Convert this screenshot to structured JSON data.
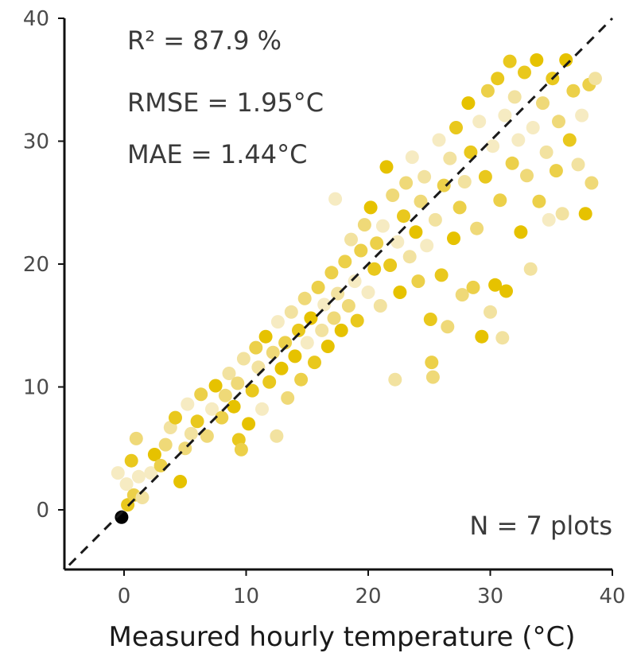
{
  "chart_data": {
    "type": "scatter",
    "title": "",
    "xlabel": "Measured hourly temperature (°C)",
    "ylabel": "",
    "xlim": [
      -5,
      40
    ],
    "ylim": [
      -5,
      40
    ],
    "x_ticks": [
      0,
      10,
      20,
      30,
      40
    ],
    "y_ticks": [
      0,
      10,
      20,
      30,
      40
    ],
    "grid": false,
    "reference_line": {
      "style": "dashed",
      "slope": 1,
      "intercept": 0,
      "color": "#1a1a1a"
    },
    "annotations": {
      "r2": "R² = 87.9 %",
      "rmse": "RMSE = 1.95°C",
      "mae": "MAE = 1.44°C",
      "n": "N = 7 plots"
    },
    "point_colors": [
      "#e6c200",
      "#e9c81d",
      "#ecd049",
      "#efd978",
      "#f2e2a0",
      "#f6ebc2"
    ],
    "points": [
      [
        -0.2,
        -0.6
      ],
      [
        0.3,
        0.4
      ],
      [
        0.8,
        1.2
      ],
      [
        1.5,
        1.0
      ],
      [
        1.2,
        2.7
      ],
      [
        0.2,
        2.1
      ],
      [
        -0.5,
        3.0
      ],
      [
        0.6,
        4.0
      ],
      [
        1.0,
        5.8
      ],
      [
        2.2,
        3.0
      ],
      [
        2.5,
        4.5
      ],
      [
        3.0,
        3.6
      ],
      [
        3.4,
        5.3
      ],
      [
        3.8,
        6.7
      ],
      [
        4.6,
        2.3
      ],
      [
        4.2,
        7.5
      ],
      [
        5.0,
        5.0
      ],
      [
        5.5,
        6.2
      ],
      [
        5.2,
        8.6
      ],
      [
        6.0,
        7.2
      ],
      [
        6.3,
        9.4
      ],
      [
        6.8,
        6.0
      ],
      [
        7.2,
        8.2
      ],
      [
        7.5,
        10.1
      ],
      [
        8.0,
        7.5
      ],
      [
        8.3,
        9.3
      ],
      [
        8.6,
        11.1
      ],
      [
        9.0,
        8.4
      ],
      [
        9.4,
        5.7
      ],
      [
        9.6,
        4.9
      ],
      [
        9.3,
        10.3
      ],
      [
        9.8,
        12.3
      ],
      [
        10.2,
        7.0
      ],
      [
        10.5,
        9.7
      ],
      [
        10.8,
        13.2
      ],
      [
        11.0,
        11.6
      ],
      [
        11.3,
        8.2
      ],
      [
        11.6,
        14.1
      ],
      [
        11.9,
        10.4
      ],
      [
        12.2,
        12.8
      ],
      [
        12.5,
        6.0
      ],
      [
        12.6,
        15.3
      ],
      [
        12.9,
        11.5
      ],
      [
        13.2,
        13.6
      ],
      [
        13.4,
        9.1
      ],
      [
        13.7,
        16.1
      ],
      [
        14.0,
        12.5
      ],
      [
        14.3,
        14.6
      ],
      [
        14.5,
        10.6
      ],
      [
        14.8,
        17.2
      ],
      [
        15.0,
        13.6
      ],
      [
        15.3,
        15.6
      ],
      [
        15.6,
        12.0
      ],
      [
        15.9,
        18.1
      ],
      [
        16.2,
        14.6
      ],
      [
        16.4,
        16.7
      ],
      [
        16.7,
        13.3
      ],
      [
        17.0,
        19.3
      ],
      [
        17.2,
        15.6
      ],
      [
        17.5,
        17.6
      ],
      [
        17.3,
        25.3
      ],
      [
        17.8,
        14.6
      ],
      [
        18.1,
        20.2
      ],
      [
        18.4,
        16.6
      ],
      [
        18.6,
        22.0
      ],
      [
        18.9,
        18.6
      ],
      [
        19.1,
        15.4
      ],
      [
        19.4,
        21.1
      ],
      [
        19.7,
        23.2
      ],
      [
        20.0,
        17.7
      ],
      [
        20.2,
        24.6
      ],
      [
        20.5,
        19.6
      ],
      [
        20.7,
        21.7
      ],
      [
        21.0,
        16.6
      ],
      [
        21.2,
        23.1
      ],
      [
        21.5,
        27.9
      ],
      [
        21.8,
        19.9
      ],
      [
        22.0,
        25.6
      ],
      [
        22.2,
        10.6
      ],
      [
        22.4,
        21.8
      ],
      [
        22.6,
        17.7
      ],
      [
        22.9,
        23.9
      ],
      [
        23.1,
        26.6
      ],
      [
        23.4,
        20.6
      ],
      [
        23.6,
        28.7
      ],
      [
        23.9,
        22.6
      ],
      [
        24.1,
        18.6
      ],
      [
        24.3,
        25.1
      ],
      [
        24.6,
        27.1
      ],
      [
        24.8,
        21.5
      ],
      [
        25.1,
        15.5
      ],
      [
        25.2,
        12.0
      ],
      [
        25.3,
        10.8
      ],
      [
        25.5,
        23.6
      ],
      [
        25.8,
        30.1
      ],
      [
        26.0,
        19.1
      ],
      [
        26.2,
        26.4
      ],
      [
        26.5,
        14.9
      ],
      [
        26.7,
        28.6
      ],
      [
        27.0,
        22.1
      ],
      [
        27.2,
        31.1
      ],
      [
        27.5,
        24.6
      ],
      [
        27.7,
        17.5
      ],
      [
        27.9,
        26.7
      ],
      [
        28.2,
        33.1
      ],
      [
        28.4,
        29.1
      ],
      [
        28.6,
        18.1
      ],
      [
        28.9,
        22.9
      ],
      [
        29.1,
        31.6
      ],
      [
        29.3,
        14.1
      ],
      [
        29.6,
        27.1
      ],
      [
        29.8,
        34.1
      ],
      [
        30.0,
        16.1
      ],
      [
        30.2,
        29.6
      ],
      [
        30.4,
        18.3
      ],
      [
        30.6,
        35.1
      ],
      [
        30.8,
        25.2
      ],
      [
        31.0,
        14.0
      ],
      [
        31.2,
        32.1
      ],
      [
        31.3,
        17.8
      ],
      [
        31.6,
        36.5
      ],
      [
        31.8,
        28.2
      ],
      [
        32.0,
        33.6
      ],
      [
        32.3,
        30.1
      ],
      [
        32.5,
        22.6
      ],
      [
        32.8,
        35.6
      ],
      [
        33.0,
        27.2
      ],
      [
        33.3,
        19.6
      ],
      [
        33.5,
        31.1
      ],
      [
        33.8,
        36.6
      ],
      [
        34.0,
        25.1
      ],
      [
        34.3,
        33.1
      ],
      [
        34.6,
        29.1
      ],
      [
        34.8,
        23.6
      ],
      [
        35.1,
        35.1
      ],
      [
        35.4,
        27.6
      ],
      [
        35.6,
        31.6
      ],
      [
        35.9,
        24.1
      ],
      [
        36.2,
        36.6
      ],
      [
        36.5,
        30.1
      ],
      [
        36.8,
        34.1
      ],
      [
        37.2,
        28.1
      ],
      [
        37.5,
        32.1
      ],
      [
        37.8,
        24.1
      ],
      [
        38.1,
        34.6
      ],
      [
        38.3,
        26.6
      ],
      [
        38.6,
        35.1
      ]
    ]
  }
}
